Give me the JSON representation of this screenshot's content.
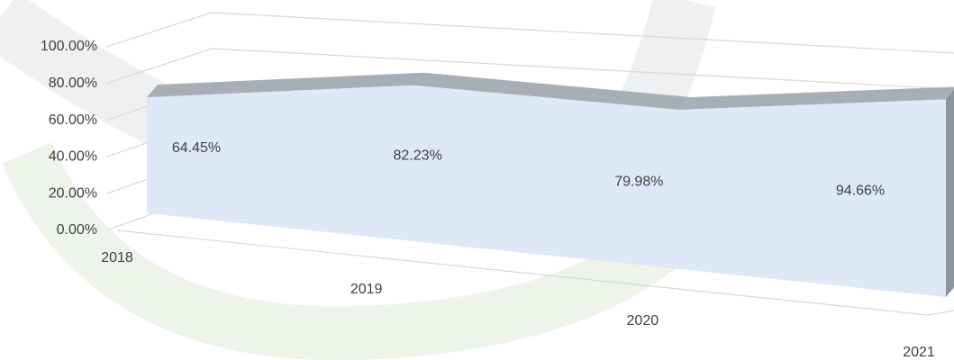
{
  "chart_data": {
    "type": "area3d",
    "categories": [
      "2018",
      "2019",
      "2020",
      "2021"
    ],
    "values": [
      64.45,
      82.23,
      79.98,
      94.66
    ],
    "value_labels": [
      "64.45%",
      "82.23%",
      "79.98%",
      "94.66%"
    ],
    "color": "#dde9f7",
    "ylim": [
      0,
      100
    ],
    "yticks": [
      {
        "value": 0,
        "label": "0.00%"
      },
      {
        "value": 20,
        "label": "20.00%"
      },
      {
        "value": 40,
        "label": "40.00%"
      },
      {
        "value": 60,
        "label": "60.00%"
      },
      {
        "value": 80,
        "label": "80.00%"
      },
      {
        "value": 100,
        "label": "100.00%"
      }
    ],
    "grid": true
  }
}
